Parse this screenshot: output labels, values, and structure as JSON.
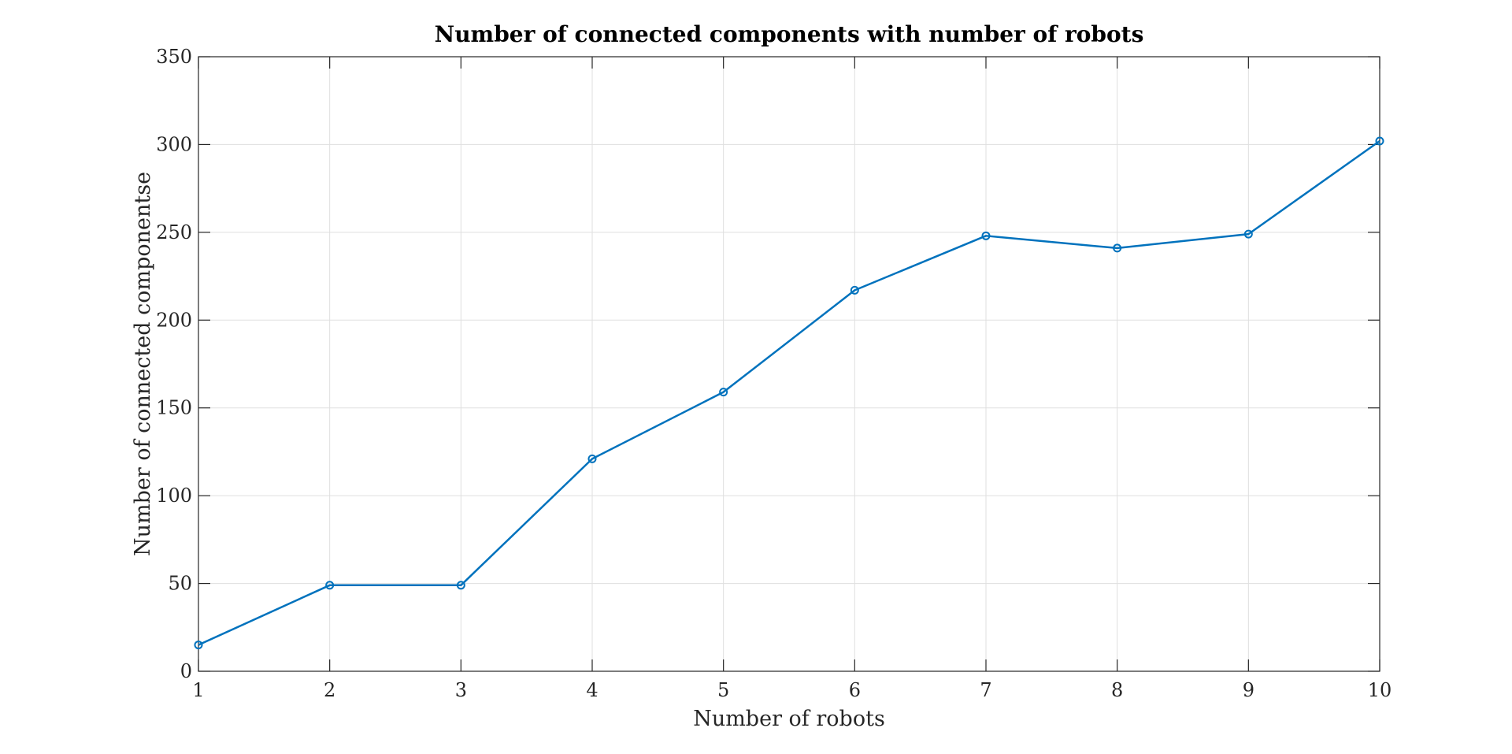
{
  "chart_data": {
    "type": "line",
    "title": "Number of connected components with number of robots",
    "xlabel": "Number of robots",
    "ylabel": "Number of connected componentse",
    "xlim": [
      1,
      10
    ],
    "ylim": [
      0,
      350
    ],
    "xticks": [
      "1",
      "2",
      "3",
      "4",
      "5",
      "6",
      "7",
      "8",
      "9",
      "10"
    ],
    "yticks": [
      "0",
      "50",
      "100",
      "150",
      "200",
      "250",
      "300",
      "350"
    ],
    "grid": true,
    "x": [
      1,
      2,
      3,
      4,
      5,
      6,
      7,
      8,
      9,
      10
    ],
    "series": [
      {
        "values": [
          15,
          49,
          49,
          121,
          159,
          217,
          248,
          241,
          249,
          302
        ],
        "color": "#0072BD",
        "marker": "circle"
      }
    ]
  }
}
